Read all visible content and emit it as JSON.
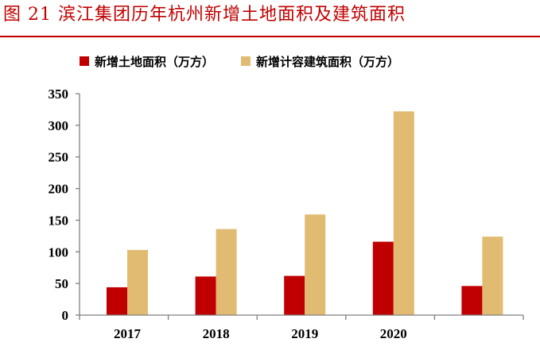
{
  "figure_title": "图 21  滨江集团历年杭州新增土地面积及建筑面积",
  "colors": {
    "title": "#c00000",
    "series_land": "#c00000",
    "series_building": "#e1bb72"
  },
  "chart_data": {
    "type": "bar",
    "title": "图 21  滨江集团历年杭州新增土地面积及建筑面积",
    "categories": [
      "2017",
      "2018",
      "2019",
      "2020",
      ""
    ],
    "series": [
      {
        "name": "新增土地面积（万方）",
        "color": "#c00000",
        "values": [
          44,
          61,
          62,
          116,
          46
        ]
      },
      {
        "name": "新增计容建筑面积（万方）",
        "color": "#e1bb72",
        "values": [
          103,
          136,
          159,
          322,
          124
        ]
      }
    ],
    "yticks": [
      0,
      50,
      100,
      150,
      200,
      250,
      300,
      350
    ],
    "ylim": [
      0,
      350
    ],
    "xlabel": "",
    "ylabel": "",
    "grid": false,
    "legend_position": "top"
  }
}
